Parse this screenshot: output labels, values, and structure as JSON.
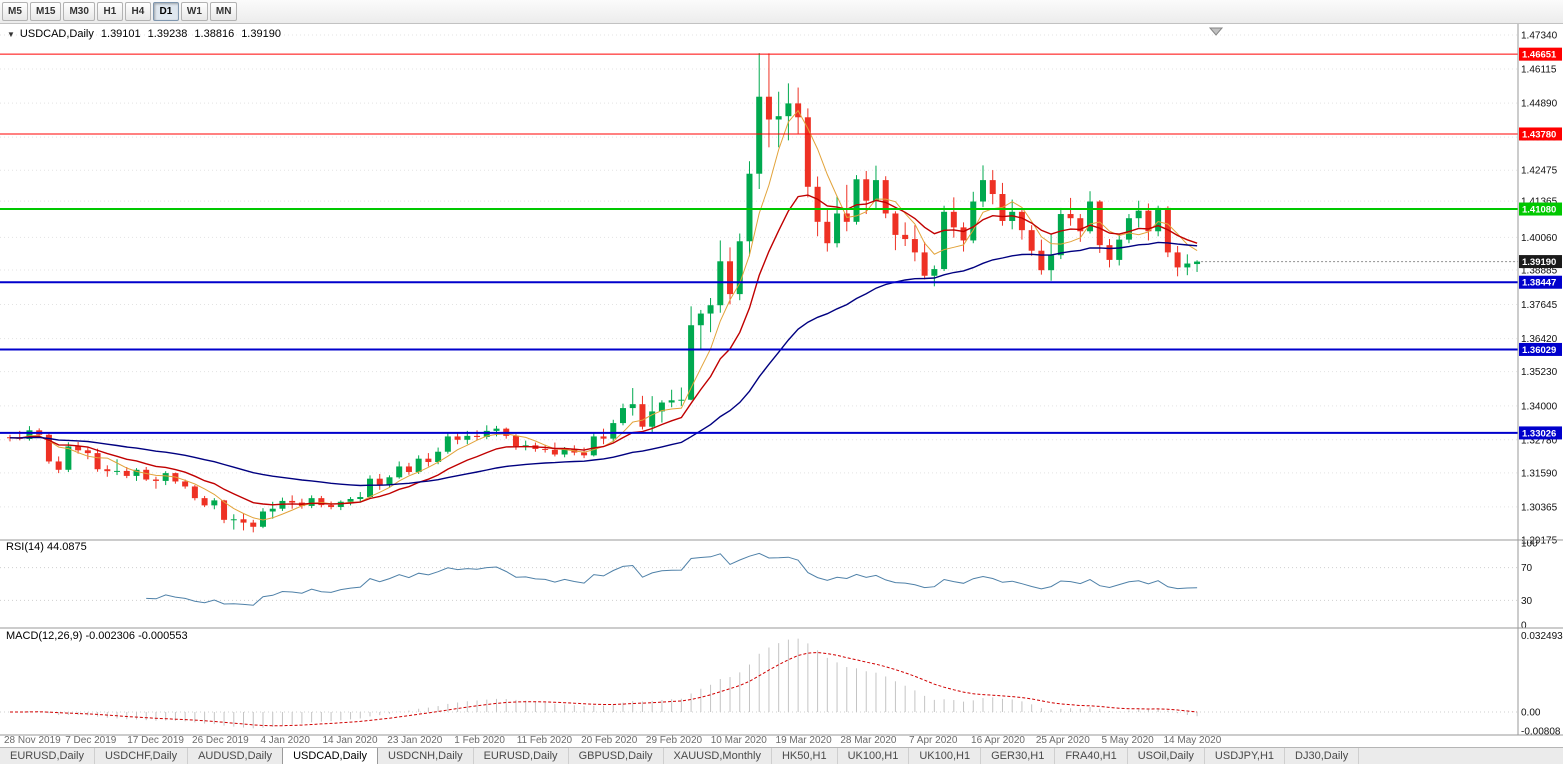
{
  "toolbar": {
    "timeframes": [
      {
        "label": "M5",
        "active": false
      },
      {
        "label": "M15",
        "active": false
      },
      {
        "label": "M30",
        "active": false
      },
      {
        "label": "H1",
        "active": false
      },
      {
        "label": "H4",
        "active": false
      },
      {
        "label": "D1",
        "active": true
      },
      {
        "label": "W1",
        "active": false
      },
      {
        "label": "MN",
        "active": false
      }
    ]
  },
  "chart": {
    "title": {
      "symbol": "USDCAD,Daily",
      "open": "1.39101",
      "high": "1.39238",
      "low": "1.38816",
      "close": "1.39190"
    },
    "rsi_label": "RSI(14) 44.0875",
    "macd_label": "MACD(12,26,9) -0.002306 -0.000553"
  },
  "chart_data": {
    "type": "candlestick",
    "title": "USDCAD,Daily",
    "symbol": "USDCAD",
    "timeframe": "Daily",
    "ylim": [
      1.29175,
      1.4734
    ],
    "y_tick_labels": [
      "1.47340",
      "1.46115",
      "1.44890",
      "1.43665",
      "1.42475",
      "1.41365",
      "1.40060",
      "1.38885",
      "1.37645",
      "1.36420",
      "1.35230",
      "1.34000",
      "1.32780",
      "1.31590",
      "1.30365",
      "1.29175"
    ],
    "x_tick_labels": [
      "28 Nov 2019",
      "7 Dec 2019",
      "17 Dec 2019",
      "26 Dec 2019",
      "4 Jan 2020",
      "14 Jan 2020",
      "23 Jan 2020",
      "1 Feb 2020",
      "11 Feb 2020",
      "20 Feb 2020",
      "29 Feb 2020",
      "10 Mar 2020",
      "19 Mar 2020",
      "28 Mar 2020",
      "7 Apr 2020",
      "16 Apr 2020",
      "25 Apr 2020",
      "5 May 2020",
      "14 May 2020"
    ],
    "open": [
      1.3287,
      1.3285,
      1.3281,
      1.3312,
      1.3296,
      1.32,
      1.317,
      1.3254,
      1.324,
      1.323,
      1.3172,
      1.3165,
      1.3166,
      1.3148,
      1.317,
      1.3135,
      1.313,
      1.3158,
      1.3128,
      1.311,
      1.3068,
      1.3042,
      1.306,
      1.299,
      1.2992,
      1.298,
      1.2965,
      1.302,
      1.303,
      1.3058,
      1.3052,
      1.304,
      1.3068,
      1.3043,
      1.3036,
      1.3055,
      1.3065,
      1.3072,
      1.3138,
      1.3115,
      1.3143,
      1.3182,
      1.3162,
      1.321,
      1.3198,
      1.3235,
      1.329,
      1.3278,
      1.3292,
      1.3288,
      1.331,
      1.3318,
      1.3292,
      1.3255,
      1.3258,
      1.3245,
      1.3242,
      1.3225,
      1.3245,
      1.3232,
      1.3222,
      1.329,
      1.3282,
      1.3338,
      1.3392,
      1.3406,
      1.3325,
      1.338,
      1.3412,
      1.342,
      1.3422,
      1.369,
      1.3732,
      1.3762,
      1.392,
      1.3802,
      1.3992,
      1.4235,
      1.4512,
      1.443,
      1.4442,
      1.4488,
      1.4438,
      1.4188,
      1.4062,
      1.3985,
      1.4092,
      1.4062,
      1.4215,
      1.4138,
      1.4212,
      1.4092,
      1.4015,
      1.4,
      1.3952,
      1.3868,
      1.3892,
      1.4098,
      1.4042,
      1.3995,
      1.4135,
      1.4212,
      1.4162,
      1.4065,
      1.4098,
      1.4032,
      1.3958,
      1.3888,
      1.3942,
      1.409,
      1.4075,
      1.4028,
      1.4135,
      1.3978,
      1.3925,
      1.3998,
      1.4075,
      1.4102,
      1.4028,
      1.4112,
      1.3952,
      1.3898,
      1.39101
    ],
    "high": [
      1.3296,
      1.331,
      1.3327,
      1.3319,
      1.3302,
      1.3218,
      1.3269,
      1.327,
      1.325,
      1.3246,
      1.3186,
      1.3208,
      1.318,
      1.3176,
      1.318,
      1.3145,
      1.3165,
      1.316,
      1.3135,
      1.3115,
      1.3076,
      1.3068,
      1.3062,
      1.301,
      1.3014,
      1.299,
      1.3032,
      1.3055,
      1.307,
      1.3078,
      1.3066,
      1.3078,
      1.3076,
      1.3056,
      1.306,
      1.3072,
      1.309,
      1.315,
      1.3155,
      1.315,
      1.32,
      1.3195,
      1.3222,
      1.323,
      1.325,
      1.3302,
      1.3304,
      1.331,
      1.3312,
      1.333,
      1.3328,
      1.3322,
      1.3298,
      1.3275,
      1.3268,
      1.326,
      1.3268,
      1.3252,
      1.3258,
      1.325,
      1.3305,
      1.3318,
      1.335,
      1.3408,
      1.3464,
      1.3436,
      1.3435,
      1.342,
      1.3458,
      1.3466,
      1.3758,
      1.3745,
      1.3788,
      1.3995,
      1.397,
      1.402,
      1.428,
      1.4669,
      1.4668,
      1.453,
      1.456,
      1.4545,
      1.447,
      1.4225,
      1.4105,
      1.4155,
      1.4195,
      1.423,
      1.4245,
      1.4264,
      1.4226,
      1.41,
      1.406,
      1.405,
      1.399,
      1.3905,
      1.412,
      1.415,
      1.406,
      1.417,
      1.4265,
      1.4248,
      1.4202,
      1.4142,
      1.4105,
      1.405,
      1.3998,
      1.402,
      1.4112,
      1.4148,
      1.409,
      1.4172,
      1.414,
      1.4,
      1.402,
      1.409,
      1.4138,
      1.4128,
      1.412,
      1.4118,
      1.3975,
      1.3945,
      1.39238
    ],
    "low": [
      1.3272,
      1.3276,
      1.3275,
      1.3288,
      1.3192,
      1.3158,
      1.3162,
      1.3228,
      1.3208,
      1.3163,
      1.3145,
      1.3151,
      1.314,
      1.313,
      1.313,
      1.3102,
      1.3115,
      1.312,
      1.3102,
      1.306,
      1.3036,
      1.3028,
      1.2978,
      1.2955,
      1.2952,
      1.2945,
      1.296,
      1.2994,
      1.3022,
      1.303,
      1.303,
      1.3032,
      1.3035,
      1.3028,
      1.3025,
      1.3042,
      1.3052,
      1.3065,
      1.3098,
      1.3105,
      1.3138,
      1.3152,
      1.3155,
      1.3182,
      1.319,
      1.3228,
      1.3262,
      1.3262,
      1.3276,
      1.328,
      1.329,
      1.3282,
      1.3242,
      1.324,
      1.3235,
      1.3232,
      1.3218,
      1.3215,
      1.3222,
      1.3212,
      1.3218,
      1.3262,
      1.327,
      1.333,
      1.3365,
      1.3315,
      1.3305,
      1.334,
      1.3395,
      1.34,
      1.342,
      1.3605,
      1.3665,
      1.3735,
      1.3765,
      1.378,
      1.3938,
      1.418,
      1.433,
      1.433,
      1.4355,
      1.438,
      1.415,
      1.401,
      1.3955,
      1.397,
      1.4028,
      1.4052,
      1.409,
      1.411,
      1.4075,
      1.396,
      1.3975,
      1.392,
      1.3855,
      1.383,
      1.3885,
      1.4005,
      1.3955,
      1.3985,
      1.4115,
      1.4125,
      1.4048,
      1.4035,
      1.3998,
      1.394,
      1.3872,
      1.385,
      1.3928,
      1.4048,
      1.399,
      1.402,
      1.395,
      1.3898,
      1.3905,
      1.3985,
      1.4042,
      1.3995,
      1.401,
      1.3935,
      1.3866,
      1.387,
      1.38816
    ],
    "close": [
      1.3285,
      1.3281,
      1.3312,
      1.3296,
      1.32,
      1.317,
      1.3254,
      1.324,
      1.323,
      1.3172,
      1.3165,
      1.3166,
      1.3148,
      1.317,
      1.3135,
      1.313,
      1.3158,
      1.3128,
      1.311,
      1.3068,
      1.3042,
      1.306,
      1.299,
      1.2992,
      1.298,
      1.2965,
      1.302,
      1.303,
      1.3058,
      1.3052,
      1.304,
      1.3068,
      1.3043,
      1.3036,
      1.3055,
      1.3065,
      1.3072,
      1.3138,
      1.3115,
      1.3143,
      1.3182,
      1.3162,
      1.321,
      1.3198,
      1.3235,
      1.329,
      1.3278,
      1.3292,
      1.3288,
      1.331,
      1.3318,
      1.3292,
      1.3255,
      1.3258,
      1.3245,
      1.3242,
      1.3225,
      1.3245,
      1.3232,
      1.3222,
      1.329,
      1.3282,
      1.3338,
      1.3392,
      1.3406,
      1.3325,
      1.338,
      1.3412,
      1.342,
      1.3422,
      1.369,
      1.3732,
      1.3762,
      1.392,
      1.3802,
      1.3992,
      1.4235,
      1.4512,
      1.443,
      1.4442,
      1.4488,
      1.4438,
      1.4188,
      1.4062,
      1.3985,
      1.4092,
      1.4062,
      1.4215,
      1.4138,
      1.4212,
      1.4092,
      1.4015,
      1.4,
      1.3952,
      1.3868,
      1.3892,
      1.4098,
      1.4042,
      1.3995,
      1.4135,
      1.4212,
      1.4162,
      1.4065,
      1.4098,
      1.4032,
      1.3958,
      1.3888,
      1.3942,
      1.409,
      1.4075,
      1.4028,
      1.4135,
      1.3978,
      1.3925,
      1.3998,
      1.4075,
      1.4102,
      1.4028,
      1.4112,
      1.3952,
      1.3898,
      1.3912,
      1.3919
    ],
    "horizontal_levels": [
      {
        "value": 1.46651,
        "label": "1.46651",
        "color": "#ff0000",
        "width": 1
      },
      {
        "value": 1.4378,
        "label": "1.43780",
        "color": "#ff0000",
        "width": 1
      },
      {
        "value": 1.4108,
        "label": "1.41080",
        "color": "#00c800",
        "width": 2
      },
      {
        "value": 1.38447,
        "label": "1.38447",
        "color": "#0000cc",
        "width": 2
      },
      {
        "value": 1.36029,
        "label": "1.36029",
        "color": "#0000cc",
        "width": 2
      },
      {
        "value": 1.33026,
        "label": "1.33026",
        "color": "#0000cc",
        "width": 2
      }
    ],
    "current_price": {
      "value": 1.3919,
      "label": "1.39190"
    },
    "overlays": [
      {
        "name": "ma-fast",
        "kind": "sma",
        "period": 5,
        "color": "#e2a33a"
      },
      {
        "name": "ma-mid",
        "kind": "ema",
        "period": 12,
        "color": "#c00000"
      },
      {
        "name": "ma-slow",
        "kind": "ema",
        "period": 40,
        "color": "#000080"
      }
    ],
    "rsi": {
      "period": 14,
      "last": 44.0875,
      "levels": [
        "100",
        "70",
        "30",
        "0"
      ],
      "color": "#4f81a8"
    },
    "macd": {
      "fast": 12,
      "slow": 26,
      "signal": 9,
      "last_main": -0.002306,
      "last_signal": -0.000553,
      "axis_ticks": [
        {
          "label": "0.032493",
          "value": 0.032493
        },
        {
          "label": "0.00",
          "value": 0
        },
        {
          "label": "-0.00808",
          "value": -0.00808
        }
      ],
      "hist_color": "#c4c4c4",
      "signal_color": "#d00000"
    },
    "colors": {
      "bull": "#00a94f",
      "bear": "#ee3124",
      "grid": "#e3e3e3"
    }
  },
  "tabs": {
    "selected_index": 3,
    "items": [
      {
        "label": "EURUSD,Daily"
      },
      {
        "label": "USDCHF,Daily"
      },
      {
        "label": "AUDUSD,Daily"
      },
      {
        "label": "USDCAD,Daily"
      },
      {
        "label": "USDCNH,Daily"
      },
      {
        "label": "EURUSD,Daily"
      },
      {
        "label": "GBPUSD,Daily"
      },
      {
        "label": "XAUUSD,Monthly"
      },
      {
        "label": "HK50,H1"
      },
      {
        "label": "UK100,H1"
      },
      {
        "label": "UK100,H1"
      },
      {
        "label": "GER30,H1"
      },
      {
        "label": "FRA40,H1"
      },
      {
        "label": "USOil,Daily"
      },
      {
        "label": "USDJPY,H1"
      },
      {
        "label": "DJ30,Daily"
      }
    ]
  }
}
